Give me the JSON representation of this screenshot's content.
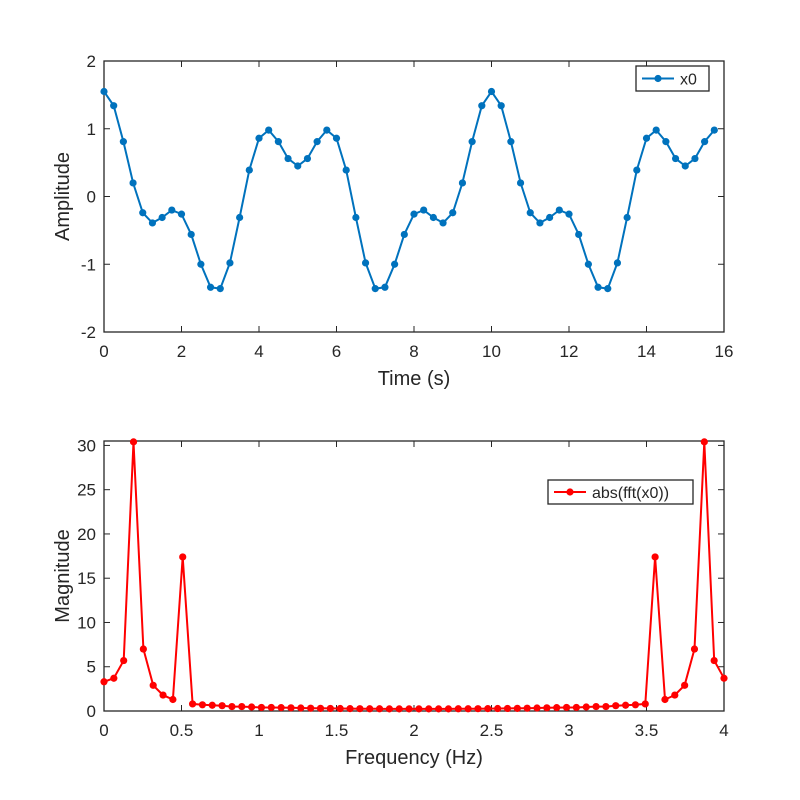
{
  "chart_data": [
    {
      "type": "line",
      "xlabel": "Time (s)",
      "ylabel": "Amplitude",
      "xlim": [
        0,
        16
      ],
      "ylim": [
        -2,
        2
      ],
      "xticks": [
        0,
        2,
        4,
        6,
        8,
        10,
        12,
        14,
        16
      ],
      "yticks": [
        -2,
        -1,
        0,
        1,
        2
      ],
      "grid": false,
      "legend_position": "top-right",
      "series": [
        {
          "name": "x0",
          "color": "#0072BD",
          "marker": "dot",
          "x": [
            0,
            0.25,
            0.5,
            0.75,
            1,
            1.25,
            1.5,
            1.75,
            2,
            2.25,
            2.5,
            2.75,
            3,
            3.25,
            3.5,
            3.75,
            4,
            4.25,
            4.5,
            4.75,
            5,
            5.25,
            5.5,
            5.75,
            6,
            6.25,
            6.5,
            6.75,
            7,
            7.25,
            7.5,
            7.75,
            8,
            8.25,
            8.5,
            8.75,
            9,
            9.25,
            9.5,
            9.75,
            10,
            10.25,
            10.5,
            10.75,
            11,
            11.25,
            11.5,
            11.75,
            12,
            12.25,
            12.5,
            12.75,
            13,
            13.25,
            13.5,
            13.75,
            14,
            14.25,
            14.5,
            14.75,
            15,
            15.25,
            15.5,
            15.75
          ],
          "y": [
            1.55,
            1.34,
            0.81,
            0.2,
            -0.24,
            -0.39,
            -0.31,
            -0.2,
            -0.26,
            -0.56,
            -1.0,
            -1.34,
            -1.36,
            -0.98,
            -0.31,
            0.39,
            0.86,
            0.98,
            0.81,
            0.56,
            0.45,
            0.56,
            0.81,
            0.98,
            0.86,
            0.39,
            -0.31,
            -0.98,
            -1.36,
            -1.34,
            -1.0,
            -0.56,
            -0.26,
            -0.2,
            -0.31,
            -0.39,
            -0.24,
            0.2,
            0.81,
            1.34,
            1.55,
            1.34,
            0.81,
            0.2,
            -0.24,
            -0.39,
            -0.31,
            -0.2,
            -0.26,
            -0.56,
            -1.0,
            -1.34,
            -1.36,
            -0.98,
            -0.31,
            0.39,
            0.86,
            0.98,
            0.81,
            0.56,
            0.45,
            0.56,
            0.81,
            0.98
          ]
        }
      ]
    },
    {
      "type": "line",
      "xlabel": "Frequency (Hz)",
      "ylabel": "Magnitude",
      "xlim": [
        0,
        4
      ],
      "ylim": [
        0,
        30.5
      ],
      "xticks": [
        0,
        0.5,
        1,
        1.5,
        2,
        2.5,
        3,
        3.5,
        4
      ],
      "yticks": [
        0,
        5,
        10,
        15,
        20,
        25,
        30
      ],
      "grid": false,
      "legend_position": "top-right",
      "series": [
        {
          "name": "abs(fft(x0))",
          "color": "#FF0000",
          "marker": "dot",
          "x_start": 0,
          "x_end": 4,
          "y": [
            3.3,
            3.7,
            5.7,
            30.4,
            7.0,
            2.9,
            1.8,
            1.3,
            17.4,
            0.8,
            0.7,
            0.65,
            0.6,
            0.5,
            0.5,
            0.45,
            0.4,
            0.4,
            0.38,
            0.36,
            0.34,
            0.32,
            0.3,
            0.29,
            0.28,
            0.27,
            0.26,
            0.25,
            0.25,
            0.24,
            0.24,
            0.24,
            0.24,
            0.24,
            0.24,
            0.24,
            0.25,
            0.25,
            0.26,
            0.27,
            0.28,
            0.29,
            0.3,
            0.32,
            0.34,
            0.36,
            0.38,
            0.4,
            0.4,
            0.45,
            0.5,
            0.5,
            0.6,
            0.65,
            0.7,
            0.8,
            17.4,
            1.3,
            1.8,
            2.9,
            7.0,
            30.4,
            5.7,
            3.7
          ]
        }
      ]
    }
  ]
}
